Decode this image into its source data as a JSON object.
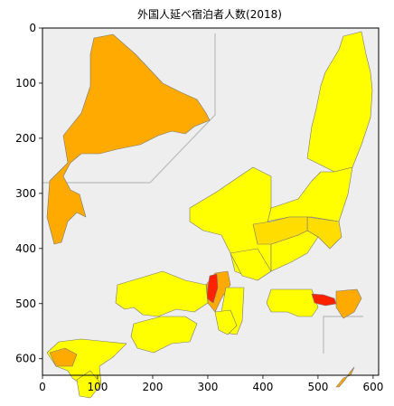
{
  "chart_data": {
    "type": "map",
    "title": "外国人延べ宿泊者人数(2018)",
    "xlim": [
      0,
      610
    ],
    "ylim": [
      630,
      0
    ],
    "xticks": [
      0,
      100,
      200,
      300,
      400,
      500,
      600
    ],
    "yticks": [
      0,
      100,
      200,
      300,
      400,
      500,
      600
    ],
    "grid": false,
    "colors": {
      "background": "#eeeeee",
      "low": "#ffff00",
      "mid_low": "#ffdd00",
      "mid": "#ffaa00",
      "mid_high": "#ff7700",
      "high": "#ff2200",
      "border": "#777777",
      "inset_line": "#bbbbbb"
    },
    "regions": [
      {
        "shade": "mid",
        "outline": [
          [
            60,
            270
          ],
          [
            52,
            240
          ],
          [
            55,
            200
          ],
          [
            75,
            180
          ],
          [
            70,
            150
          ],
          [
            90,
            125
          ],
          [
            100,
            95
          ],
          [
            100,
            60
          ],
          [
            104,
            42
          ],
          [
            125,
            38
          ],
          [
            150,
            60
          ],
          [
            180,
            92
          ],
          [
            200,
            102
          ],
          [
            218,
            110
          ],
          [
            228,
            125
          ],
          [
            232,
            133
          ],
          [
            215,
            140
          ],
          [
            205,
            148
          ],
          [
            190,
            145
          ],
          [
            175,
            150
          ],
          [
            155,
            160
          ],
          [
            130,
            165
          ],
          [
            110,
            170
          ],
          [
            90,
            170
          ],
          [
            78,
            180
          ],
          [
            70,
            195
          ],
          [
            78,
            210
          ],
          [
            88,
            215
          ],
          [
            95,
            240
          ],
          [
            85,
            235
          ],
          [
            75,
            245
          ],
          [
            68,
            268
          ]
        ]
      },
      {
        "shade": "low",
        "outline": [
          [
            370,
            190
          ],
          [
            340,
            175
          ],
          [
            345,
            140
          ],
          [
            350,
            120
          ],
          [
            355,
            95
          ],
          [
            360,
            80
          ],
          [
            375,
            55
          ],
          [
            380,
            40
          ],
          [
            400,
            35
          ],
          [
            405,
            60
          ],
          [
            410,
            80
          ],
          [
            412,
            100
          ],
          [
            410,
            130
          ],
          [
            400,
            160
          ],
          [
            390,
            185
          ]
        ]
      },
      {
        "shade": "low",
        "outline": [
          [
            300,
            230
          ],
          [
            330,
            220
          ],
          [
            345,
            200
          ],
          [
            355,
            190
          ],
          [
            370,
            190
          ],
          [
            390,
            185
          ],
          [
            385,
            215
          ],
          [
            375,
            245
          ],
          [
            345,
            240
          ],
          [
            320,
            240
          ],
          [
            295,
            245
          ]
        ]
      },
      {
        "shade": "mid_low",
        "outline": [
          [
            340,
            240
          ],
          [
            375,
            245
          ],
          [
            378,
            262
          ],
          [
            365,
            275
          ],
          [
            352,
            262
          ],
          [
            340,
            255
          ]
        ]
      },
      {
        "shade": "low",
        "outline": [
          [
            210,
            230
          ],
          [
            240,
            212
          ],
          [
            265,
            195
          ],
          [
            280,
            185
          ],
          [
            300,
            195
          ],
          [
            300,
            230
          ],
          [
            295,
            250
          ],
          [
            300,
            270
          ],
          [
            300,
            300
          ],
          [
            285,
            310
          ],
          [
            260,
            300
          ],
          [
            255,
            280
          ],
          [
            245,
            260
          ],
          [
            225,
            255
          ],
          [
            210,
            245
          ]
        ]
      },
      {
        "shade": "low",
        "outline": [
          [
            300,
            270
          ],
          [
            330,
            260
          ],
          [
            340,
            255
          ],
          [
            352,
            262
          ],
          [
            340,
            280
          ],
          [
            322,
            290
          ],
          [
            300,
            300
          ]
        ]
      },
      {
        "shade": "mid_low",
        "outline": [
          [
            280,
            248
          ],
          [
            300,
            245
          ],
          [
            320,
            240
          ],
          [
            340,
            240
          ],
          [
            340,
            255
          ],
          [
            330,
            260
          ],
          [
            300,
            270
          ],
          [
            285,
            270
          ]
        ]
      },
      {
        "shade": "low",
        "outline": [
          [
            255,
            280
          ],
          [
            285,
            275
          ],
          [
            300,
            300
          ],
          [
            285,
            310
          ],
          [
            268,
            305
          ]
        ]
      },
      {
        "shade": "mid",
        "outline": [
          [
            238,
            302
          ],
          [
            252,
            300
          ],
          [
            255,
            315
          ],
          [
            245,
            330
          ],
          [
            238,
            345
          ],
          [
            230,
            335
          ],
          [
            228,
            315
          ]
        ]
      },
      {
        "shade": "high",
        "outline": [
          [
            232,
            305
          ],
          [
            240,
            303
          ],
          [
            241,
            318
          ],
          [
            236,
            335
          ],
          [
            229,
            330
          ],
          [
            230,
            318
          ]
        ]
      },
      {
        "shade": "low",
        "outline": [
          [
            130,
            315
          ],
          [
            180,
            300
          ],
          [
            205,
            310
          ],
          [
            228,
            315
          ],
          [
            230,
            335
          ],
          [
            215,
            345
          ],
          [
            195,
            342
          ],
          [
            175,
            350
          ],
          [
            158,
            348
          ],
          [
            148,
            340
          ],
          [
            138,
            342
          ],
          [
            128,
            335
          ]
        ]
      },
      {
        "shade": "low",
        "outline": [
          [
            250,
            318
          ],
          [
            270,
            318
          ],
          [
            268,
            355
          ],
          [
            262,
            370
          ],
          [
            248,
            368
          ],
          [
            245,
            345
          ]
        ]
      },
      {
        "shade": "low",
        "outline": [
          [
            148,
            358
          ],
          [
            178,
            350
          ],
          [
            205,
            350
          ],
          [
            218,
            358
          ],
          [
            210,
            378
          ],
          [
            190,
            380
          ],
          [
            170,
            390
          ],
          [
            152,
            385
          ],
          [
            145,
            372
          ]
        ]
      },
      {
        "shade": "low",
        "outline": [
          [
            52,
            390
          ],
          [
            65,
            378
          ],
          [
            90,
            375
          ],
          [
            120,
            378
          ],
          [
            140,
            380
          ],
          [
            125,
            395
          ],
          [
            110,
            405
          ],
          [
            112,
            425
          ],
          [
            98,
            440
          ],
          [
            90,
            425
          ],
          [
            80,
            418
          ],
          [
            75,
            410
          ],
          [
            62,
            405
          ]
        ]
      },
      {
        "shade": "mid",
        "outline": [
          [
            55,
            390
          ],
          [
            72,
            385
          ],
          [
            85,
            392
          ],
          [
            80,
            405
          ],
          [
            62,
            405
          ]
        ]
      },
      {
        "shade": "low",
        "outline": [
          [
            300,
            320
          ],
          [
            325,
            320
          ],
          [
            345,
            320
          ],
          [
            352,
            340
          ],
          [
            345,
            350
          ],
          [
            330,
            350
          ],
          [
            318,
            345
          ],
          [
            300,
            345
          ],
          [
            295,
            335
          ]
        ]
      },
      {
        "shade": "high",
        "outline": [
          [
            345,
            325
          ],
          [
            358,
            326
          ],
          [
            370,
            330
          ],
          [
            372,
            336
          ],
          [
            360,
            338
          ],
          [
            348,
            335
          ]
        ]
      },
      {
        "shade": "mid",
        "outline": [
          [
            372,
            322
          ],
          [
            395,
            320
          ],
          [
            400,
            330
          ],
          [
            392,
            345
          ],
          [
            380,
            352
          ],
          [
            372,
            340
          ]
        ]
      },
      {
        "shade": "low",
        "outline": [
          [
            238,
            345
          ],
          [
            255,
            343
          ],
          [
            262,
            360
          ],
          [
            252,
            370
          ],
          [
            242,
            365
          ]
        ]
      },
      {
        "shade": "low",
        "outline": [
          [
            85,
            420
          ],
          [
            100,
            410
          ],
          [
            112,
            425
          ],
          [
            100,
            440
          ],
          [
            88,
            438
          ]
        ]
      },
      {
        "shade": "mid",
        "outline": [
          [
            372,
            428
          ],
          [
            380,
            418
          ],
          [
            388,
            415
          ],
          [
            392,
            406
          ],
          [
            387,
            412
          ],
          [
            382,
            420
          ],
          [
            375,
            428
          ]
        ]
      }
    ],
    "inset_lines": [
      [
        [
          47,
          202
        ],
        [
          166,
          202
        ],
        [
          238,
          127
        ],
        [
          238,
          37
        ]
      ],
      [
        [
          358,
          391
        ],
        [
          358,
          350
        ],
        [
          402,
          350
        ]
      ]
    ]
  }
}
